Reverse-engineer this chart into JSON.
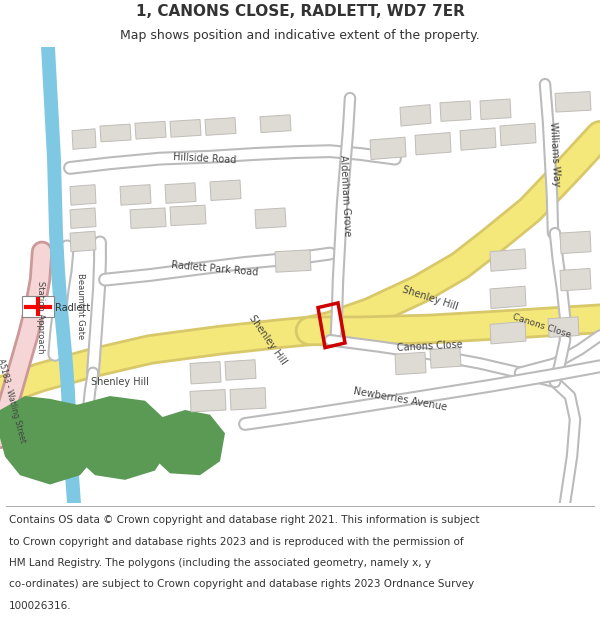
{
  "title": "1, CANONS CLOSE, RADLETT, WD7 7ER",
  "subtitle": "Map shows position and indicative extent of the property.",
  "footer_lines": [
    "Contains OS data © Crown copyright and database right 2021. This information is subject",
    "to Crown copyright and database rights 2023 and is reproduced with the permission of",
    "HM Land Registry. The polygons (including the associated geometry, namely x, y",
    "co-ordinates) are subject to Crown copyright and database rights 2023 Ordnance Survey",
    "100026316."
  ],
  "map_bg": "#f0eeea",
  "road_yellow_outer": "#d8c86a",
  "road_yellow_inner": "#f5e87a",
  "road_white_outer": "#bbbbbb",
  "road_white_inner": "#ffffff",
  "building_fill": "#dedbd5",
  "building_outline": "#c0bdb8",
  "green_fill": "#5a9a55",
  "blue_fill": "#7ec8e3",
  "pink_fill": "#f5c8c8",
  "pink_road_outer": "#cc9999",
  "pink_road_inner": "#f5d5d5",
  "highlight_red": "#cc0000",
  "text_color": "#333333",
  "title_fontsize": 11,
  "subtitle_fontsize": 9,
  "footer_fontsize": 7.5
}
